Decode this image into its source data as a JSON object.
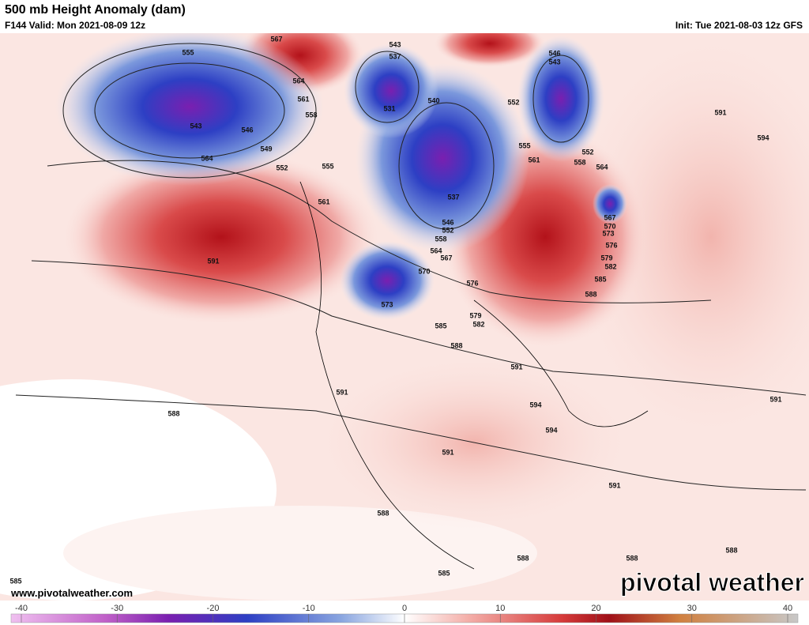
{
  "header": {
    "title": "500 mb Height Anomaly (dam)",
    "valid": "F144 Valid: Mon 2021-08-09 12z",
    "init": "Init: Tue 2021-08-03 12z GFS"
  },
  "footer": {
    "website": "www.pivotalweather.com",
    "brand": "pivotal weather"
  },
  "colorbar": {
    "lim": [
      -40,
      40
    ],
    "ticks": [
      -40,
      -30,
      -20,
      -10,
      0,
      10,
      20,
      30,
      40
    ]
  },
  "contour_labels": [
    "567",
    "555",
    "543",
    "537",
    "546",
    "543",
    "564",
    "561",
    "558",
    "531",
    "540",
    "552",
    "543",
    "546",
    "549",
    "552",
    "564",
    "555",
    "555",
    "561",
    "558",
    "564",
    "552",
    "591",
    "594",
    "561",
    "537",
    "546",
    "552",
    "558",
    "564",
    "567",
    "570",
    "567",
    "570",
    "573",
    "576",
    "579",
    "582",
    "585",
    "591",
    "573",
    "576",
    "588",
    "579",
    "582",
    "585",
    "588",
    "591",
    "591",
    "594",
    "594",
    "588",
    "591",
    "591",
    "591",
    "588",
    "588",
    "588",
    "588",
    "585",
    "585"
  ]
}
